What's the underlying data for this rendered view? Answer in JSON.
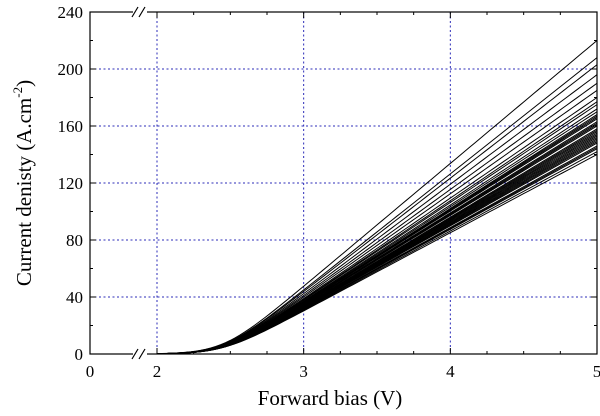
{
  "chart_data": {
    "type": "line",
    "title": "",
    "xlabel": "Forward bias (V)",
    "ylabel": {
      "prefix": "Current denisty (A.cm",
      "superscript": "-2",
      "suffix": ")"
    },
    "xlim": [
      0,
      5
    ],
    "ylim": [
      0,
      240
    ],
    "x_axis_break": {
      "between": [
        0,
        2
      ],
      "shown_ticks": [
        0,
        2,
        3,
        4,
        5
      ]
    },
    "x_tick_labels": [
      "0",
      "2",
      "3",
      "4",
      "5"
    ],
    "y_ticks": [
      0,
      40,
      80,
      120,
      160,
      200,
      240
    ],
    "y_tick_labels": [
      "0",
      "40",
      "80",
      "120",
      "160",
      "200",
      "240"
    ],
    "grid": true,
    "legend": "none",
    "turn_on_voltage": 2.45,
    "series_end_values_at_5V": [
      220,
      208,
      203,
      196,
      190,
      185,
      180,
      177,
      175,
      172,
      170,
      168,
      167,
      166,
      165,
      163,
      162,
      161,
      160,
      158,
      157,
      156,
      155,
      154,
      153,
      152,
      151,
      150,
      149,
      148,
      146,
      145,
      144,
      142,
      140
    ]
  }
}
